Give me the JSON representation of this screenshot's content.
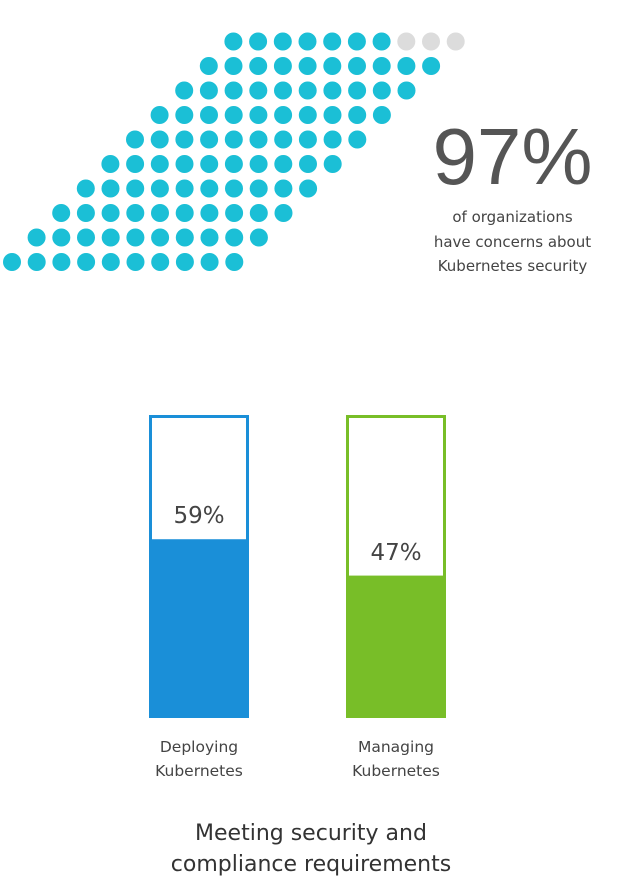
{
  "chart_data": [
    {
      "type": "waffle",
      "value": 97,
      "value_label": "97%",
      "colors": {
        "filled": "#1bbfd6",
        "empty": "#dcdcdc"
      },
      "annotation": [
        "of organizations",
        "have concerns about",
        "Kubernetes security"
      ]
    },
    {
      "type": "bar",
      "title": "Meeting security and compliance requirements",
      "categories": [
        "Deploying Kubernetes",
        "Managing Kubernetes"
      ],
      "values": [
        59,
        47
      ],
      "value_labels": [
        "59%",
        "47%"
      ],
      "colors": [
        "#1a8fd8",
        "#78be28"
      ],
      "ylim": [
        0,
        100
      ]
    }
  ]
}
